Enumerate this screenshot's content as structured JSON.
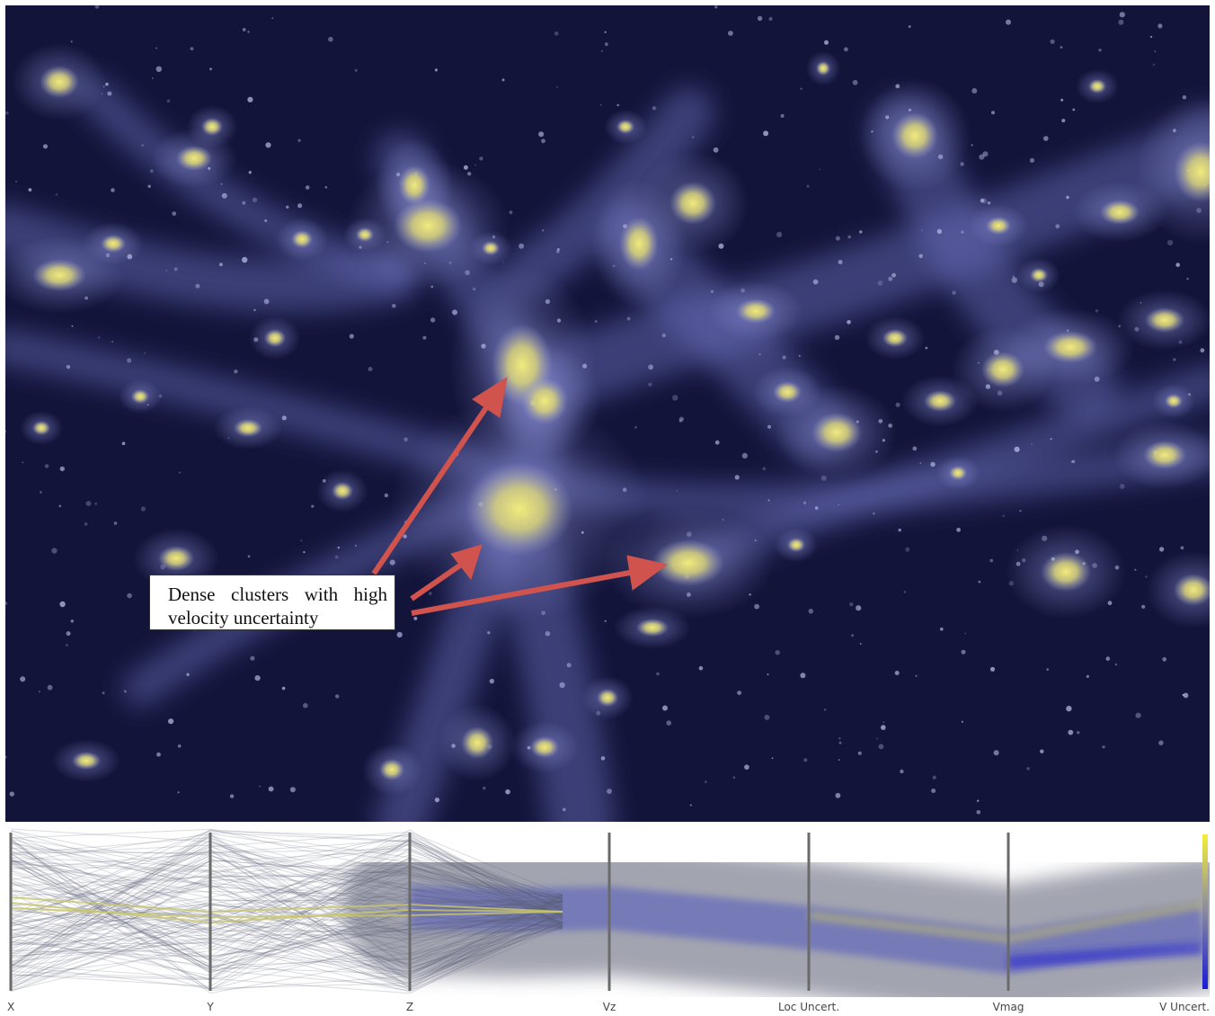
{
  "annotation": {
    "text": "Dense clusters with high velocity uncertainty"
  },
  "colors": {
    "background": "#10122e",
    "filament": "#7c80c8",
    "cluster": "#e6e07a",
    "arrow": "#d0534e",
    "pcp_lines": "#6a6e88",
    "pcp_highlight": "#c8c56a",
    "pcp_band": "#6f73b8",
    "colorbar_top": "#f4ef3a",
    "colorbar_bottom": "#1a1ad8"
  },
  "parallel_coordinates": {
    "axes": [
      {
        "label": "X"
      },
      {
        "label": "Y"
      },
      {
        "label": "Z"
      },
      {
        "label": "Vz"
      },
      {
        "label": "Loc Uncert."
      },
      {
        "label": "Vmag"
      },
      {
        "label": "V Uncert."
      }
    ]
  }
}
